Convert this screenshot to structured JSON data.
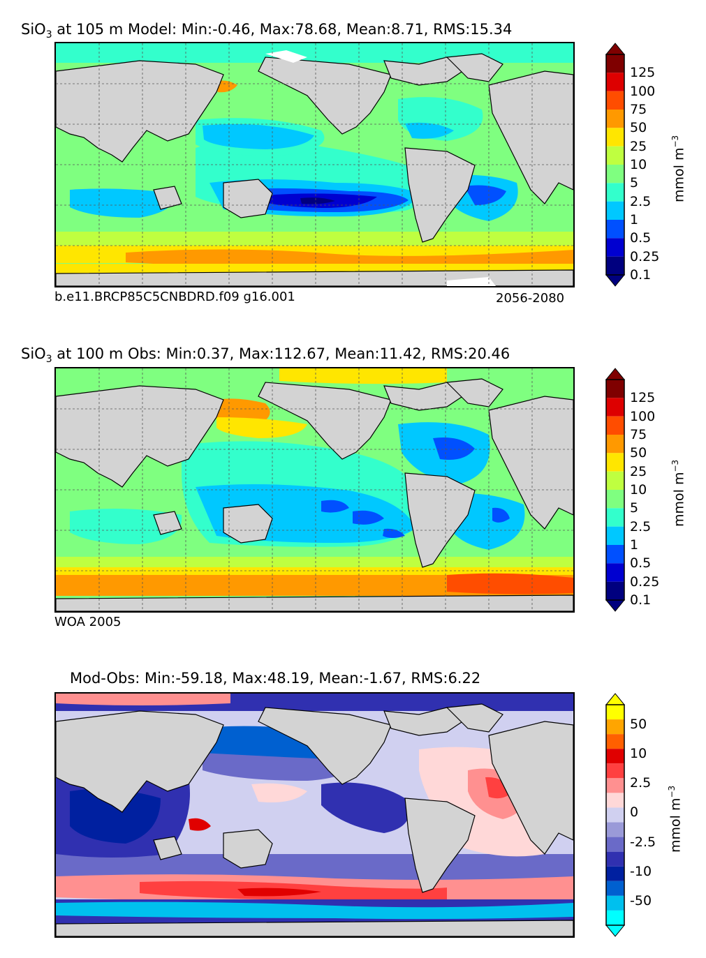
{
  "colors": {
    "land": "#d3d3d3",
    "seq": [
      "#00007f",
      "#0000d0",
      "#0050ff",
      "#00c8ff",
      "#33ffcc",
      "#7fff80",
      "#bfff40",
      "#ffe600",
      "#ff9900",
      "#ff4d00",
      "#dd0000",
      "#7f0000"
    ],
    "diff": [
      "#00ffff",
      "#00c0ee",
      "#0060d0",
      "#0020a0",
      "#3030b0",
      "#6a6ac8",
      "#9a9ad8",
      "#d0d0f0",
      "#ffd8d8",
      "#ff9090",
      "#ff4040",
      "#e00000",
      "#ff6000",
      "#ffa500",
      "#ffff00"
    ]
  },
  "panels": [
    {
      "title_main": "SiO",
      "title_sub": "3",
      "title_rest": " at 105 m Model: Min:-0.46, Max:78.68, Mean:8.71, RMS:15.34",
      "caption_left": "b.e11.BRCP85C5CNBDRD.f09 g16.001",
      "caption_right": "2056-2080",
      "colorbar": {
        "ticks": [
          "125",
          "100",
          "75",
          "50",
          "25",
          "10",
          "5",
          "2.5",
          "1",
          "0.5",
          "0.25",
          "0.1"
        ],
        "unit": "mmol m",
        "unit_sup": "−3"
      }
    },
    {
      "title_main": "SiO",
      "title_sub": "3",
      "title_rest": " at 100 m Obs: Min:0.37, Max:112.67, Mean:11.42, RMS:20.46",
      "caption_left": "WOA 2005",
      "caption_right": "",
      "colorbar": {
        "ticks": [
          "125",
          "100",
          "75",
          "50",
          "25",
          "10",
          "5",
          "2.5",
          "1",
          "0.5",
          "0.25",
          "0.1"
        ],
        "unit": "mmol m",
        "unit_sup": "−3"
      }
    },
    {
      "title_main": "",
      "title_sub": "",
      "title_rest": "Mod-Obs: Min:-59.18, Max:48.19, Mean:-1.67, RMS:6.22",
      "caption_left": "",
      "caption_right": "",
      "colorbar": {
        "ticks": [
          "50",
          "10",
          "2.5",
          "0",
          "-2.5",
          "-10",
          "-50"
        ],
        "unit": "mmol m",
        "unit_sup": "−3"
      }
    }
  ]
}
